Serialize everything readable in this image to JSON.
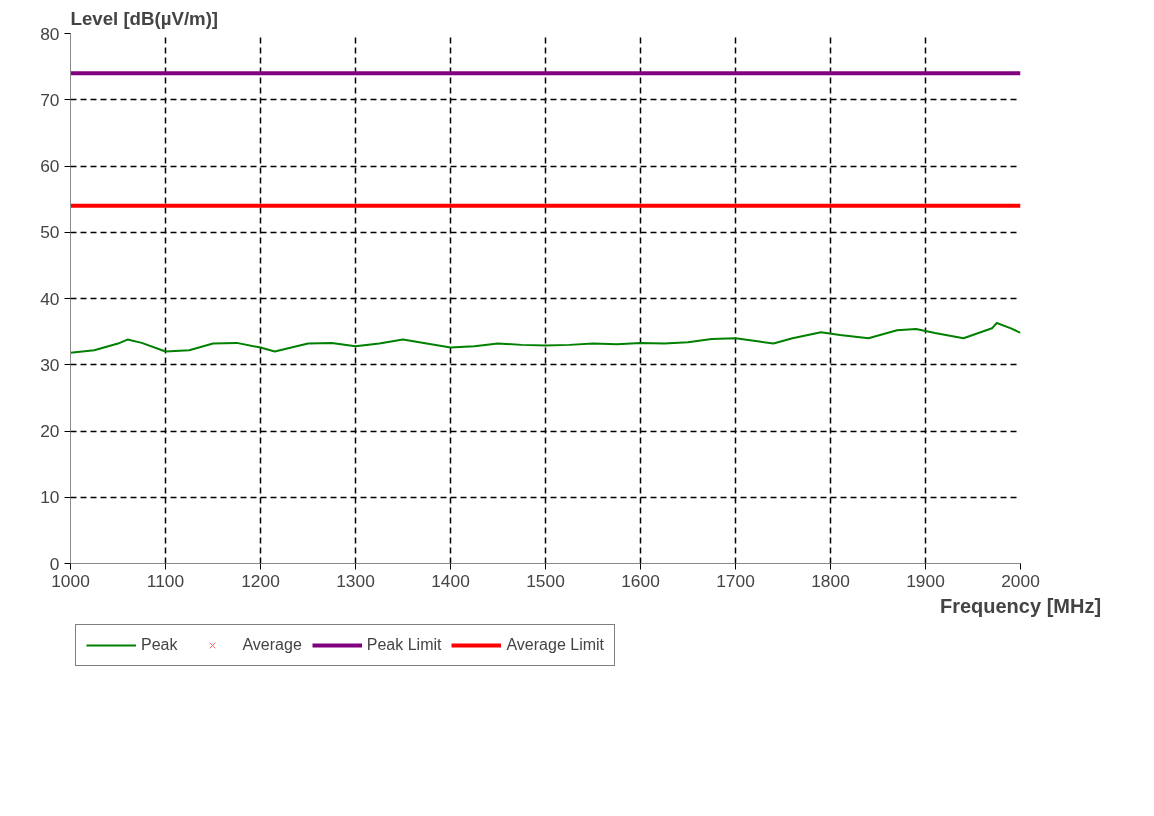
{
  "chart_data": {
    "type": "line",
    "ylabel": "Level [dB(µV/m)]",
    "xlabel": "Frequency [MHz]",
    "xlim": [
      1000,
      2000
    ],
    "xticks": [
      1000,
      1100,
      1200,
      1300,
      1400,
      1500,
      1600,
      1700,
      1800,
      1900,
      2000
    ],
    "ylim": [
      0,
      80
    ],
    "yticks": [
      0,
      10,
      20,
      30,
      40,
      50,
      60,
      70,
      80
    ],
    "grid": true,
    "legend": "bottom left",
    "series": [
      {
        "name": "Peak",
        "color": "#008000",
        "x": [
          1000,
          1025,
          1050,
          1060,
          1075,
          1100,
          1125,
          1150,
          1175,
          1200,
          1215,
          1250,
          1275,
          1300,
          1325,
          1350,
          1375,
          1400,
          1425,
          1450,
          1475,
          1500,
          1525,
          1550,
          1575,
          1600,
          1625,
          1650,
          1675,
          1700,
          1725,
          1740,
          1760,
          1790,
          1810,
          1840,
          1870,
          1890,
          1910,
          1940,
          1970,
          1975,
          1990,
          2000
        ],
        "values": [
          31.8,
          32.2,
          33.2,
          33.8,
          33.3,
          32.0,
          32.2,
          33.2,
          33.3,
          32.6,
          32.0,
          33.2,
          33.3,
          32.8,
          33.2,
          33.8,
          33.2,
          32.6,
          32.8,
          33.2,
          33.0,
          32.9,
          33.0,
          33.2,
          33.1,
          33.3,
          33.2,
          33.4,
          33.9,
          34.0,
          33.5,
          33.2,
          34.0,
          34.9,
          34.5,
          34.0,
          35.2,
          35.4,
          34.8,
          34.0,
          35.5,
          36.3,
          35.5,
          34.8
        ]
      },
      {
        "name": "Average",
        "color": "#ff6666",
        "type": "scatter",
        "marker": "cross"
      },
      {
        "name": "Peak Limit",
        "color": "#800080",
        "type": "line",
        "x": [
          1000,
          2000
        ],
        "values": [
          74,
          74
        ]
      },
      {
        "name": "Average Limit",
        "color": "#ff0000",
        "type": "line",
        "x": [
          1000,
          2000
        ],
        "values": [
          54,
          54
        ]
      }
    ]
  }
}
